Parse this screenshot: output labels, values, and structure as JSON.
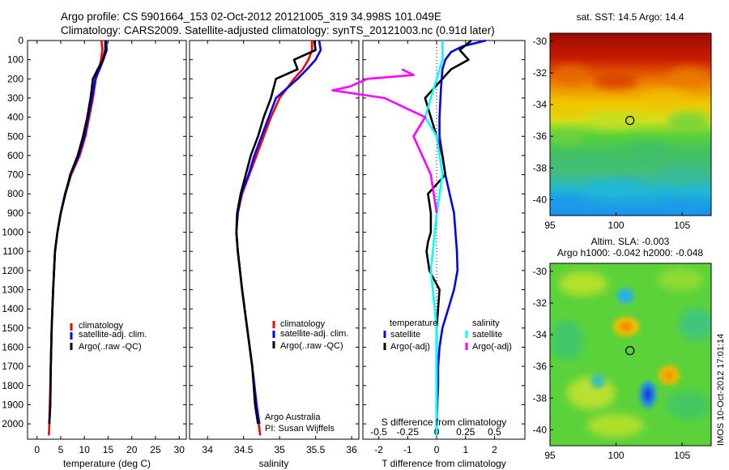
{
  "titles": {
    "line1": "Argo profile: CS 5901664_153 02-Oct-2012 20121005_319 34.998S 101.049E",
    "line2": "Climatology: CARS2009. Satellite-adjusted climatology: synTS_20121003.nc (0.91d later)"
  },
  "depth_ticks": [
    0,
    100,
    200,
    300,
    400,
    500,
    600,
    700,
    800,
    900,
    1000,
    1100,
    1200,
    1300,
    1400,
    1500,
    1600,
    1700,
    1800,
    1900,
    2000
  ],
  "colors": {
    "clim": "#ff0000",
    "sat": "#0000ff",
    "argo": "#000000",
    "sat_s": "#00ffff",
    "argo_s": "#ff00ff"
  },
  "legend_tp": {
    "clim": "climatology",
    "sat": "satellite-adj. clim.",
    "argo": "Argo(..raw -QC)"
  },
  "legend_diff": {
    "t_head": "temperature",
    "s_head": "salinity",
    "sat": "satellite",
    "argo": "Argo(-adj)"
  },
  "credit": {
    "line1": "Argo Australia",
    "line2": "PI: Susan Wijffels"
  },
  "side_labels": {
    "sst": "sat. SST: 14.5 Argo: 14.4",
    "sla1": "Altim. SLA: -0.003",
    "sla2": "Argo h1000: -0.042 h2000: -0.048",
    "timestamp": "IMOS 10-Oct-2012 17:01:14"
  },
  "chart_data": [
    {
      "type": "line",
      "name_key": "temperature_profile",
      "xlabel": "temperature (deg C)",
      "ylabel": "",
      "xlim": [
        -2,
        31.5
      ],
      "ylim": [
        2080,
        0
      ],
      "xticks": [
        0,
        5,
        10,
        15,
        20,
        25,
        30
      ],
      "series": [
        {
          "key": "clim",
          "x": [
            13.6,
            13.8,
            13.5,
            13.1,
            12.4,
            11.8,
            11.0,
            10.2,
            9.0,
            7.2,
            6.0,
            5.0,
            4.3,
            3.8,
            3.4,
            3.1,
            2.9,
            2.7,
            2.6,
            2.5
          ],
          "y": [
            0,
            50,
            100,
            150,
            200,
            300,
            400,
            500,
            600,
            700,
            800,
            900,
            1000,
            1100,
            1300,
            1500,
            1700,
            1900,
            2000,
            2060
          ]
        },
        {
          "key": "sat",
          "x": [
            14.6,
            14.7,
            14.0,
            13.2,
            12.3,
            11.6,
            10.8,
            10.0,
            8.8,
            7.1,
            5.9,
            5.0,
            4.3,
            3.8,
            3.4,
            3.1,
            2.9,
            2.8,
            2.6
          ],
          "y": [
            0,
            50,
            100,
            150,
            200,
            300,
            400,
            500,
            600,
            700,
            800,
            900,
            1000,
            1100,
            1300,
            1500,
            1700,
            1900,
            2000
          ]
        },
        {
          "key": "argo",
          "x": [
            14.4,
            14.4,
            13.9,
            12.8,
            11.8,
            11.3,
            10.6,
            9.7,
            8.6,
            7.0,
            6.0,
            5.0,
            4.3,
            3.8,
            3.4,
            3.1,
            2.9,
            2.8,
            2.6
          ],
          "y": [
            0,
            50,
            100,
            150,
            200,
            300,
            400,
            500,
            600,
            700,
            800,
            900,
            1000,
            1100,
            1300,
            1500,
            1700,
            1900,
            2000
          ]
        }
      ]
    },
    {
      "type": "line",
      "name_key": "salinity_profile",
      "xlabel": "salinity",
      "ylabel": "",
      "xlim": [
        33.75,
        36.1
      ],
      "ylim": [
        2080,
        0
      ],
      "xticks": [
        34,
        34.5,
        35,
        35.5,
        36
      ],
      "series": [
        {
          "key": "clim",
          "x": [
            35.45,
            35.45,
            35.4,
            35.32,
            35.2,
            35.0,
            34.88,
            34.78,
            34.68,
            34.58,
            34.48,
            34.42,
            34.4,
            34.42,
            34.48,
            34.55,
            34.62,
            34.68,
            34.71,
            34.73
          ],
          "y": [
            0,
            50,
            100,
            150,
            200,
            300,
            400,
            500,
            600,
            700,
            800,
            900,
            1000,
            1100,
            1300,
            1500,
            1700,
            1900,
            2000,
            2060
          ]
        },
        {
          "key": "sat",
          "x": [
            35.55,
            35.57,
            35.5,
            35.38,
            35.25,
            34.95,
            34.85,
            34.75,
            34.65,
            34.57,
            34.47,
            34.42,
            34.4,
            34.42,
            34.48,
            34.55,
            34.62,
            34.68,
            34.72
          ],
          "y": [
            0,
            50,
            100,
            150,
            200,
            300,
            400,
            500,
            600,
            700,
            800,
            900,
            1000,
            1100,
            1300,
            1500,
            1700,
            1900,
            2000
          ]
        },
        {
          "key": "argo",
          "x": [
            35.48,
            35.5,
            35.2,
            35.25,
            34.95,
            34.88,
            34.78,
            34.7,
            34.6,
            34.53,
            34.46,
            34.41,
            34.4,
            34.42,
            34.48,
            34.55,
            34.62,
            34.66,
            34.7
          ],
          "y": [
            0,
            50,
            100,
            150,
            200,
            300,
            400,
            500,
            600,
            700,
            800,
            900,
            1000,
            1100,
            1300,
            1500,
            1700,
            1900,
            2000
          ]
        }
      ]
    },
    {
      "type": "line",
      "name_key": "difference_profile",
      "xlabel": "T difference from climatology",
      "ylabel": "",
      "xlabel_top": "S difference from climatology",
      "xlim": [
        -2.55,
        3.05
      ],
      "ylim": [
        2080,
        0
      ],
      "xticks": [
        -2,
        -1,
        0,
        1,
        2
      ],
      "xticks_top": [
        {
          "v": -0.5,
          "label": "-0.5"
        },
        {
          "v": -0.25,
          "label": "-0.25"
        },
        {
          "v": 0,
          "label": "0"
        },
        {
          "v": 0.25,
          "label": "0.25"
        },
        {
          "v": 0.5,
          "label": "0.5"
        }
      ],
      "series": [
        {
          "key": "sat",
          "x": [
            1.7,
            0.9,
            0.5,
            0.3,
            0.2,
            0.15,
            0.1,
            0.1,
            0.2,
            0.3,
            0.45,
            0.6,
            0.65,
            0.7,
            0.72,
            0.6,
            0.4,
            0.2,
            0.1,
            0.05,
            0.05,
            0.02,
            0.0,
            0.0
          ],
          "y": [
            0,
            30,
            60,
            100,
            150,
            250,
            400,
            500,
            600,
            700,
            800,
            900,
            1000,
            1100,
            1200,
            1300,
            1400,
            1500,
            1600,
            1700,
            1800,
            1900,
            2000,
            2060
          ]
        },
        {
          "key": "argo",
          "x": [
            1.2,
            0.8,
            1.1,
            0.5,
            0.2,
            -0.4,
            -0.2,
            0.0,
            0.2,
            0.3,
            -0.3,
            -0.2,
            -0.2,
            -0.3,
            -0.35,
            -0.25,
            0.1,
            0.0,
            0.0,
            0.0,
            0.0
          ],
          "y": [
            0,
            50,
            100,
            150,
            200,
            300,
            400,
            500,
            600,
            700,
            800,
            900,
            1000,
            1050,
            1100,
            1200,
            1300,
            1500,
            1700,
            1900,
            2060
          ]
        },
        {
          "key": "sat_s",
          "x": [
            0.05,
            0.05,
            0.0,
            -0.05,
            -0.1,
            0.0,
            0.05,
            0.0,
            -0.05,
            0.0,
            0.0,
            0.0,
            0.0
          ],
          "y": [
            0,
            100,
            200,
            300,
            400,
            500,
            700,
            900,
            1200,
            1500,
            1700,
            1900,
            2060
          ]
        },
        {
          "key": "argo_s",
          "x": [
            -0.3,
            -0.2,
            -0.6,
            -0.75,
            -0.9,
            -0.45,
            -0.1,
            -0.2,
            -0.05,
            0.0
          ],
          "y": [
            150,
            180,
            200,
            240,
            260,
            300,
            400,
            500,
            700,
            900
          ]
        }
      ]
    },
    {
      "type": "heatmap",
      "name_key": "sst_map",
      "xlim": [
        95,
        107.2
      ],
      "ylim": [
        -41,
        -29.5
      ],
      "xticks": [
        95,
        100,
        105
      ],
      "yticks": [
        -30,
        -32,
        -34,
        -36,
        -38,
        -40
      ],
      "marker": {
        "x": 101.05,
        "y": -35.0
      }
    },
    {
      "type": "heatmap",
      "name_key": "sla_map",
      "xlim": [
        95,
        107.2
      ],
      "ylim": [
        -41,
        -29.5
      ],
      "xticks": [
        95,
        100,
        105
      ],
      "yticks": [
        -30,
        -32,
        -34,
        -36,
        -38,
        -40
      ],
      "marker": {
        "x": 101.05,
        "y": -35.0
      }
    }
  ]
}
